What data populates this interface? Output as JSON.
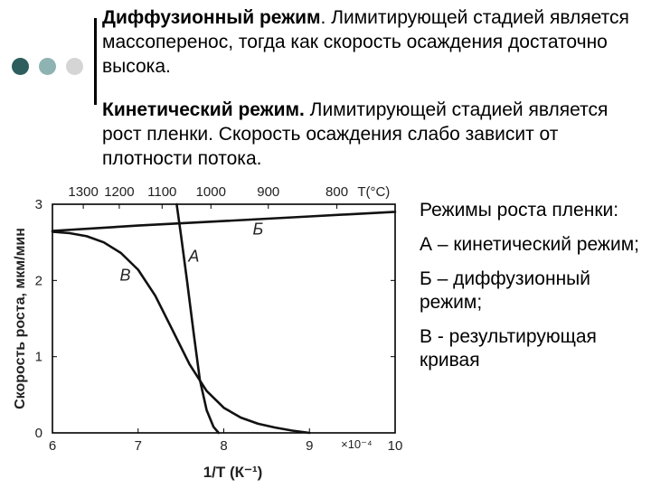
{
  "colors": {
    "accent_dark": "#2d5d5d",
    "accent_mid": "#8fb3b3",
    "accent_light": "#d5d5d5",
    "bar": "#000000",
    "text": "#000000"
  },
  "decoration": {
    "icon": "bullet-dots-icon"
  },
  "paragraphs": [
    {
      "bold": "Диффузионный режим",
      "text": ". Лимитирующей стадией является массоперенос, тогда как скорость осаждения достаточно высока."
    },
    {
      "bold": "Кинетический режим.",
      "text": " Лимитирующей стадией является рост пленки. Скорость осаждения слабо зависит от плотности потока."
    }
  ],
  "notes": [
    "Режимы роста пленки:",
    "А – кинетический режим;",
    "Б – диффузионный режим;",
    "В - результирующая кривая"
  ],
  "chart_data": {
    "type": "line",
    "xlabel": "1/T (К⁻¹)",
    "ylabel": "Скорость роста, мкм/мин",
    "xlim": [
      6,
      10
    ],
    "ylim": [
      0,
      3.0
    ],
    "x_ticks": [
      "6",
      "7",
      "8",
      "9",
      "10"
    ],
    "x_multiplier": "×10⁻⁴",
    "y_ticks": [
      "0",
      "1",
      "2",
      "3"
    ],
    "top_axis_label": "T(°C)",
    "top_axis_ticks": [
      {
        "label": "1300",
        "x": 6.36
      },
      {
        "label": "1200",
        "x": 6.78
      },
      {
        "label": "1100",
        "x": 7.28
      },
      {
        "label": "1000",
        "x": 7.85
      },
      {
        "label": "900",
        "x": 8.52
      },
      {
        "label": "800",
        "x": 9.32
      }
    ],
    "series": [
      {
        "name": "Б",
        "x": [
          6.0,
          7.0,
          8.0,
          9.0,
          10.0
        ],
        "y": [
          2.65,
          2.72,
          2.78,
          2.84,
          2.9
        ]
      },
      {
        "name": "А",
        "x": [
          7.45,
          7.5,
          7.57,
          7.65,
          7.72,
          7.8,
          7.88,
          7.94
        ],
        "y": [
          3.0,
          2.6,
          2.0,
          1.3,
          0.7,
          0.3,
          0.08,
          0.0
        ]
      },
      {
        "name": "В",
        "x": [
          6.0,
          6.2,
          6.4,
          6.6,
          6.8,
          7.0,
          7.2,
          7.4,
          7.6,
          7.8,
          8.0,
          8.2,
          8.4,
          8.6,
          8.8,
          9.0
        ],
        "y": [
          2.64,
          2.62,
          2.58,
          2.5,
          2.36,
          2.14,
          1.8,
          1.35,
          0.9,
          0.55,
          0.33,
          0.2,
          0.12,
          0.07,
          0.03,
          0.0
        ]
      }
    ],
    "labels": [
      {
        "text": "Б",
        "x": 8.4,
        "y": 2.6
      },
      {
        "text": "А",
        "x": 7.65,
        "y": 2.25
      },
      {
        "text": "В",
        "x": 6.85,
        "y": 2.0
      }
    ]
  }
}
